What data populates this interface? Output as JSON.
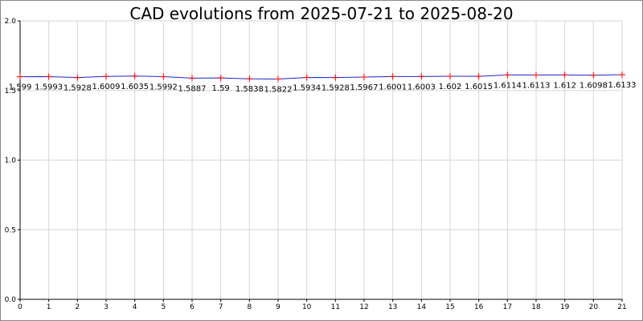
{
  "chart_data": {
    "type": "line",
    "title": "CAD evolutions from 2025-07-21 to 2025-08-20",
    "xlabel": "",
    "ylabel": "",
    "x": [
      0,
      1,
      2,
      3,
      4,
      5,
      6,
      7,
      8,
      9,
      10,
      11,
      12,
      13,
      14,
      15,
      16,
      17,
      18,
      19,
      20,
      21
    ],
    "x_tick_labels": [
      "0",
      "1",
      "2",
      "3",
      "4",
      "5",
      "6",
      "7",
      "8",
      "9",
      "10",
      "11",
      "12",
      "13",
      "14",
      "15",
      "16",
      "17",
      "18",
      "19",
      "20",
      "21"
    ],
    "xlim": [
      0,
      21
    ],
    "ylim": [
      0.0,
      2.0
    ],
    "y_ticks": [
      0.0,
      0.5,
      1.0,
      1.5,
      2.0
    ],
    "y_tick_labels": [
      "0.0",
      "0.5",
      "1.0",
      "1.5",
      "2.0"
    ],
    "series": [
      {
        "values": [
          1.599,
          1.5993,
          1.5928,
          1.6009,
          1.6035,
          1.5992,
          1.5887,
          1.59,
          1.5838,
          1.5822,
          1.5934,
          1.5928,
          1.5967,
          1.6001,
          1.6003,
          1.602,
          1.6015,
          1.6114,
          1.6113,
          1.612,
          1.6098,
          1.6133
        ],
        "data_labels": [
          "1.599",
          "1.5993",
          "1.5928",
          "1.6009",
          "1.6035",
          "1.5992",
          "1.5887",
          "1.59",
          "1.5838",
          "1.5822",
          "1.5934",
          "1.5928",
          "1.5967",
          "1.6001",
          "1.6003",
          "1.602",
          "1.6015",
          "1.6114",
          "1.6113",
          "1.612",
          "1.6098",
          "1.6133"
        ],
        "line_color": "#2222cc",
        "marker_color": "#ff0000",
        "marker": "plus"
      }
    ],
    "grid": true,
    "legend": false,
    "colors": {
      "background": "#ffffff",
      "grid": "#d6d6d6",
      "axis": "#000000",
      "frame": "#888888"
    }
  }
}
